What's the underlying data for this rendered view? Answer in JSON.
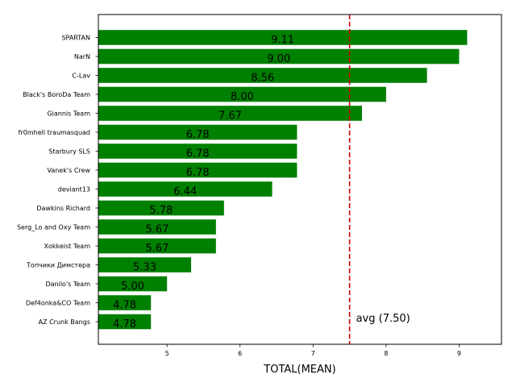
{
  "chart_data": {
    "type": "bar",
    "orientation": "horizontal",
    "categories": [
      "SPARTAN",
      "NarN",
      "C-Lav",
      "Black's BoroDa Team",
      "Giannis Team",
      "fr0mhell traumasquad",
      "Starbury SLS",
      "Vanek's Crew",
      "deviant13",
      "Dawkins Richard",
      "Serg_Lo and Oxy Team",
      "Xokkeist Team",
      "Топчики Димстера",
      "Danilo's Team",
      "Def4onka&CO Team",
      "AZ Crunk Bangs"
    ],
    "values": [
      9.11,
      9.0,
      8.56,
      8.0,
      7.67,
      6.78,
      6.78,
      6.78,
      6.44,
      5.78,
      5.67,
      5.67,
      5.33,
      5.0,
      4.78,
      4.78
    ],
    "value_labels": [
      "9.11",
      "9.00",
      "8.56",
      "8.00",
      "7.67",
      "6.78",
      "6.78",
      "6.78",
      "6.44",
      "5.78",
      "5.67",
      "5.67",
      "5.33",
      "5.00",
      "4.78",
      "4.78"
    ],
    "xlabel": "TOTAL(MEAN)",
    "ylabel": "",
    "title": "",
    "xlim": [
      4.06,
      9.58
    ],
    "xticks": [
      5,
      6,
      7,
      8,
      9
    ],
    "xtick_labels": [
      "5",
      "6",
      "7",
      "8",
      "9"
    ],
    "bar_color": "#008000",
    "grid": false,
    "average": {
      "value": 7.5,
      "label": "avg (7.50)",
      "color": "#cc0000",
      "style": "dashed"
    }
  }
}
